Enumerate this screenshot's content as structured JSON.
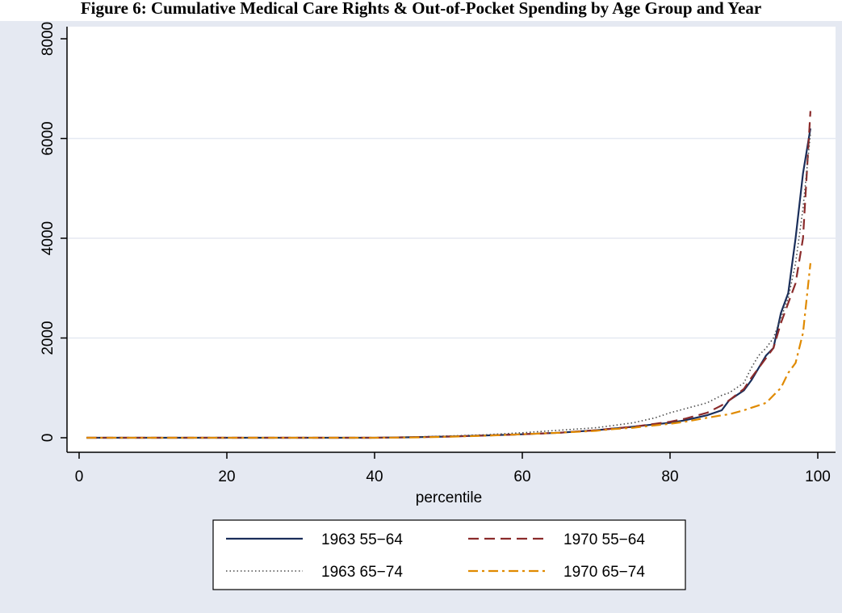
{
  "chart_data": {
    "type": "line",
    "title": "Figure 6: Cumulative Medical Care Rights & Out-of-Pocket Spending by Age Group and Year",
    "xlabel": "percentile",
    "ylabel": "",
    "xlim": [
      0,
      100
    ],
    "ylim": [
      0,
      8000
    ],
    "xticks": [
      0,
      20,
      40,
      60,
      80,
      100
    ],
    "yticks": [
      0,
      2000,
      4000,
      6000,
      8000
    ],
    "grid": true,
    "legend_position": "bottom",
    "series": [
      {
        "name": "1963 55−64",
        "color": "#1a2e5a",
        "dash": "solid",
        "x": [
          1,
          40,
          45,
          50,
          55,
          60,
          65,
          70,
          72,
          75,
          78,
          80,
          82,
          85,
          87,
          88,
          90,
          91,
          92,
          93,
          94,
          95,
          96,
          97,
          98,
          99
        ],
        "values": [
          0,
          0,
          10,
          25,
          45,
          70,
          100,
          150,
          180,
          220,
          270,
          300,
          350,
          450,
          550,
          750,
          950,
          1150,
          1400,
          1650,
          1800,
          2500,
          2900,
          4000,
          5300,
          6200
        ]
      },
      {
        "name": "1970 55−64",
        "color": "#8b2b2b",
        "dash": "dashed",
        "x": [
          1,
          40,
          45,
          50,
          55,
          60,
          65,
          70,
          72,
          75,
          78,
          80,
          82,
          85,
          87,
          88,
          90,
          91,
          92,
          93,
          94,
          95,
          96,
          97,
          98,
          99
        ],
        "values": [
          0,
          0,
          10,
          25,
          45,
          70,
          100,
          150,
          180,
          220,
          280,
          320,
          380,
          500,
          650,
          750,
          980,
          1200,
          1400,
          1600,
          1800,
          2300,
          2700,
          3100,
          4000,
          6550
        ]
      },
      {
        "name": "1963 65−74",
        "color": "#4a4a4a",
        "dash": "dotted",
        "x": [
          1,
          40,
          45,
          50,
          55,
          60,
          65,
          70,
          72,
          75,
          78,
          80,
          82,
          85,
          87,
          88,
          90,
          91,
          92,
          93,
          94,
          95,
          96,
          97,
          98,
          99
        ],
        "values": [
          0,
          0,
          15,
          35,
          60,
          100,
          150,
          200,
          240,
          300,
          400,
          500,
          580,
          700,
          850,
          900,
          1100,
          1400,
          1650,
          1800,
          2000,
          2400,
          2800,
          3500,
          4600,
          6100
        ]
      },
      {
        "name": "1970 65−74",
        "color": "#e08a00",
        "dash": "dashdot",
        "x": [
          1,
          40,
          45,
          50,
          55,
          60,
          65,
          70,
          72,
          75,
          78,
          80,
          82,
          85,
          87,
          88,
          90,
          91,
          92,
          93,
          94,
          95,
          96,
          97,
          98,
          99
        ],
        "values": [
          0,
          0,
          5,
          20,
          40,
          70,
          100,
          140,
          170,
          200,
          250,
          280,
          320,
          400,
          450,
          470,
          550,
          600,
          650,
          700,
          850,
          1000,
          1300,
          1500,
          2100,
          3500
        ]
      }
    ]
  },
  "colors": {
    "background": "#e5e9f2",
    "plot_background": "#ffffff",
    "grid": "#e5e9f2",
    "axis": "#000000"
  }
}
